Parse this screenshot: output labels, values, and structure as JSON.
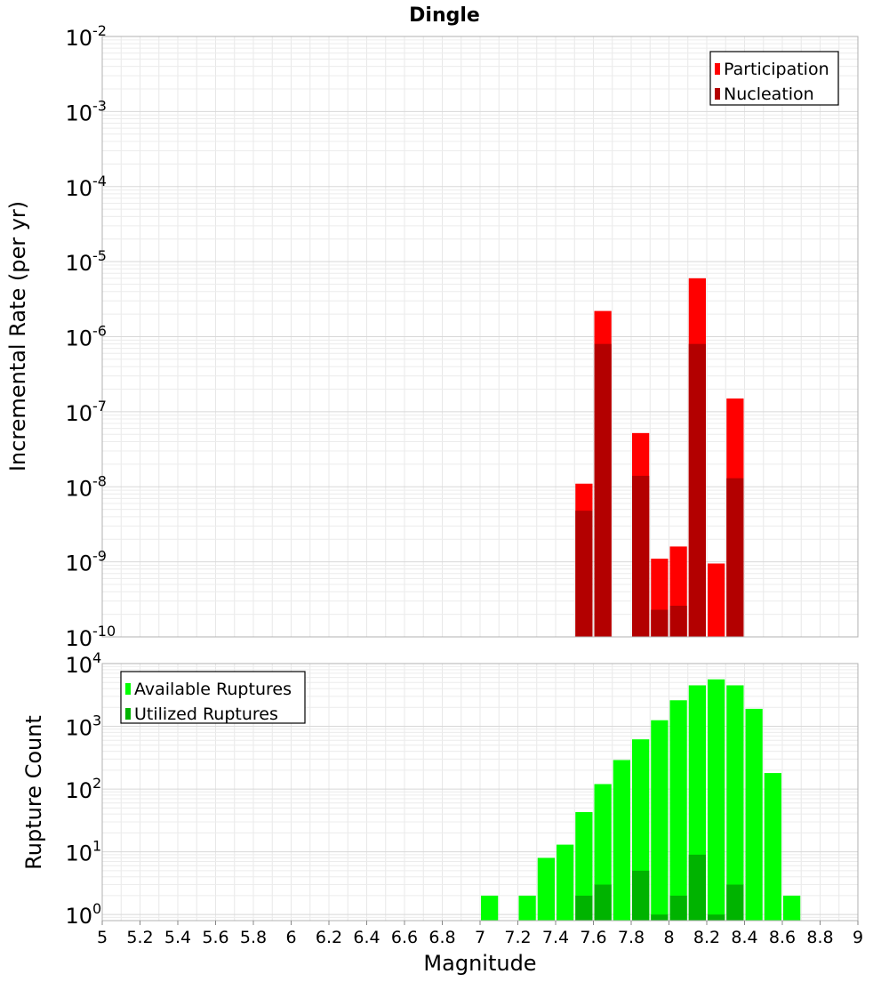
{
  "chart_data": [
    {
      "type": "bar",
      "title": "Dingle",
      "xlabel": "",
      "ylabel": "Incremental Rate (per yr)",
      "xlim": [
        5,
        9
      ],
      "ylim": [
        1e-10,
        0.01
      ],
      "yscale": "log",
      "bar_width": 0.1,
      "grid": true,
      "legend_position": "top-right",
      "y_tick_exponents": [
        -10,
        -9,
        -8,
        -7,
        -6,
        -5,
        -4,
        -3,
        -2
      ],
      "series": [
        {
          "name": "Participation",
          "color": "#ff0000",
          "x": [
            7.55,
            7.65,
            7.85,
            7.95,
            8.05,
            8.15,
            8.25,
            8.35
          ],
          "values": [
            1.1e-08,
            2.2e-06,
            5.2e-08,
            1.1e-09,
            1.6e-09,
            6e-06,
            9.5e-10,
            1.5e-07
          ]
        },
        {
          "name": "Nucleation",
          "color": "#b30000",
          "x": [
            7.55,
            7.65,
            7.85,
            7.95,
            8.05,
            8.15,
            8.35
          ],
          "values": [
            4.8e-09,
            8e-07,
            1.4e-08,
            2.3e-10,
            2.6e-10,
            8e-07,
            1.3e-08
          ]
        }
      ]
    },
    {
      "type": "bar",
      "title": "",
      "xlabel": "Magnitude",
      "ylabel": "Rupture Count",
      "xlim": [
        5,
        9
      ],
      "ylim": [
        0.8,
        10000
      ],
      "yscale": "log",
      "bar_width": 0.1,
      "grid": true,
      "legend_position": "top-left",
      "y_tick_exponents": [
        0,
        1,
        2,
        3,
        4
      ],
      "x_ticks": [
        "5",
        "5.2",
        "5.4",
        "5.6",
        "5.8",
        "6",
        "6.2",
        "6.4",
        "6.6",
        "6.8",
        "7",
        "7.2",
        "7.4",
        "7.6",
        "7.8",
        "8",
        "8.2",
        "8.4",
        "8.6",
        "8.8",
        "9"
      ],
      "series": [
        {
          "name": "Available Ruptures",
          "color": "#00ff00",
          "x": [
            7.05,
            7.25,
            7.35,
            7.45,
            7.55,
            7.65,
            7.75,
            7.85,
            7.95,
            8.05,
            8.15,
            8.25,
            8.35,
            8.45,
            8.55,
            8.65
          ],
          "values": [
            2,
            2,
            8,
            13,
            43,
            120,
            290,
            620,
            1250,
            2600,
            4500,
            5600,
            4500,
            1900,
            180,
            2
          ]
        },
        {
          "name": "Utilized Ruptures",
          "color": "#00b300",
          "x": [
            7.55,
            7.65,
            7.85,
            7.95,
            8.05,
            8.15,
            8.25,
            8.35
          ],
          "values": [
            2,
            3,
            5,
            1,
            2,
            9,
            1,
            3
          ]
        }
      ]
    }
  ]
}
